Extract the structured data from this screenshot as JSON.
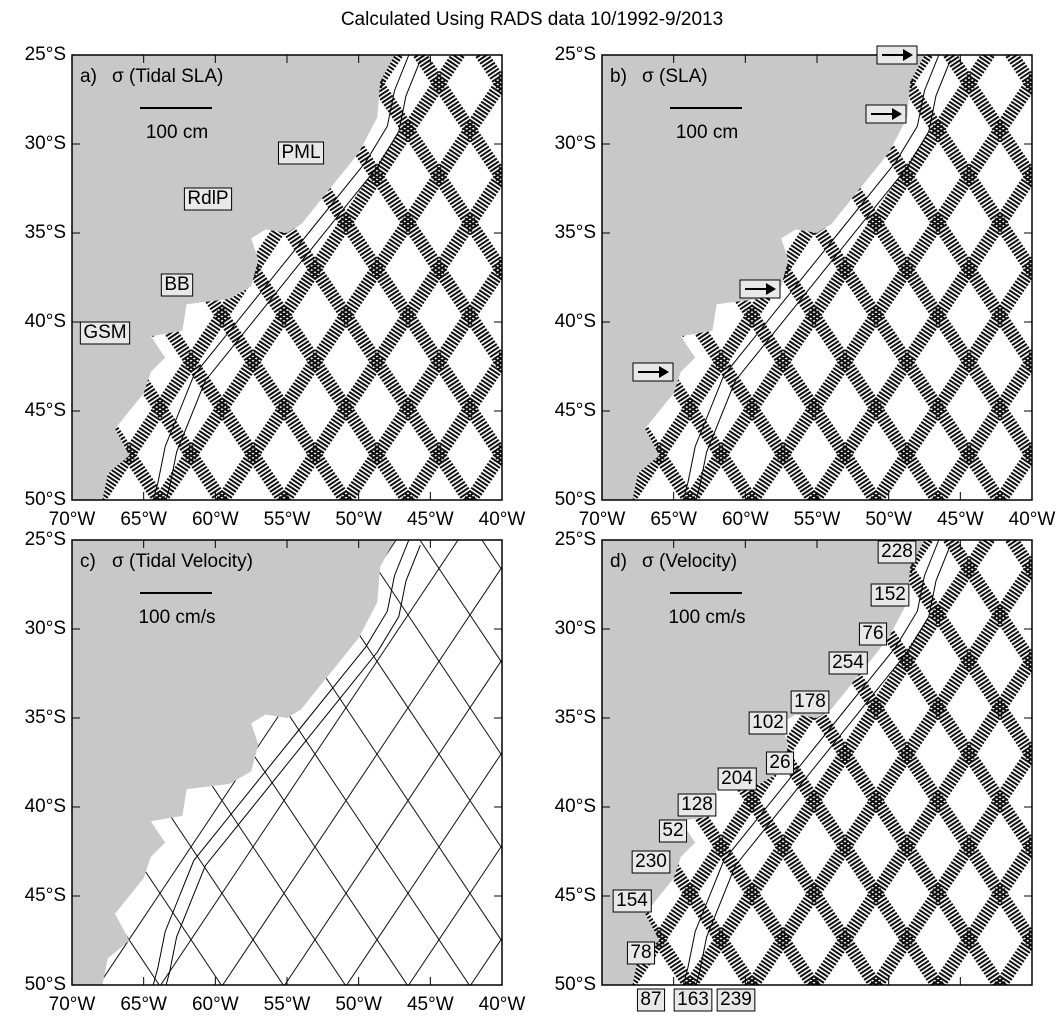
{
  "title": "Calculated Using RADS data 10/1992-9/2013",
  "lat_labels": [
    "25°S",
    "30°S",
    "35°S",
    "40°S",
    "45°S",
    "50°S"
  ],
  "lon_labels": [
    "70°W",
    "65°W",
    "60°W",
    "55°W",
    "50°W",
    "45°W",
    "40°W"
  ],
  "panels": [
    {
      "label": "a)",
      "quantity": "σ (Tidal SLA)",
      "scale": "100 cm",
      "annotations": [
        "PML",
        "RdlP",
        "BB",
        "GSM"
      ]
    },
    {
      "label": "b)",
      "quantity": "σ (SLA)",
      "scale": "100 cm",
      "annotations": []
    },
    {
      "label": "c)",
      "quantity": "σ (Tidal Velocity)",
      "scale": "100 cm/s",
      "annotations": []
    },
    {
      "label": "d)",
      "quantity": "σ (Velocity)",
      "scale": "100 cm/s",
      "annotations": [
        228,
        152,
        76,
        254,
        178,
        102,
        26,
        204,
        128,
        52,
        230,
        154,
        78,
        87,
        163,
        239
      ]
    }
  ]
}
